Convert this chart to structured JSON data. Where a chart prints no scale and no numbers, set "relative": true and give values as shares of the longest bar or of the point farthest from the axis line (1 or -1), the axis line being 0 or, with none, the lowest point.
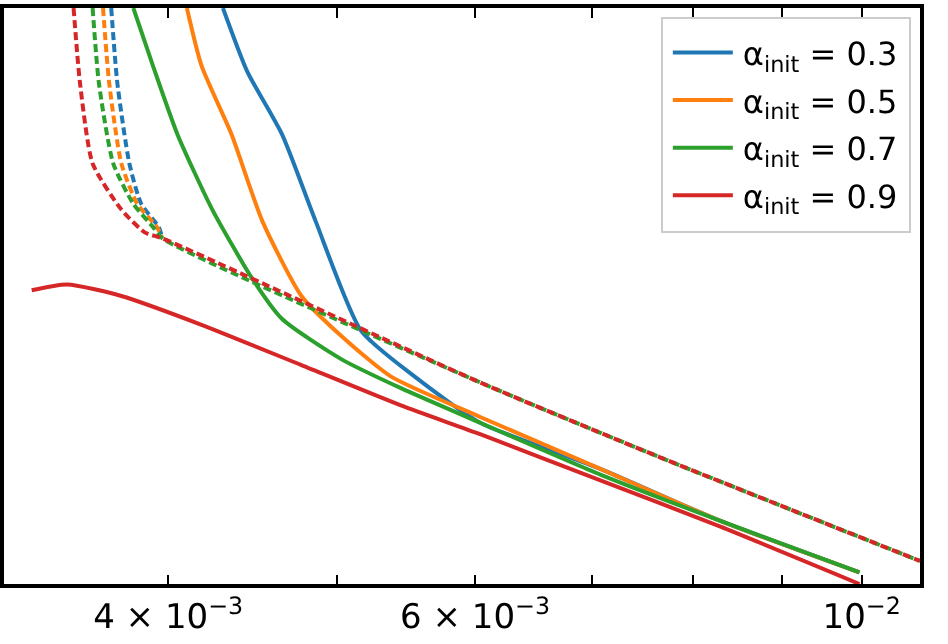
{
  "chart_data": {
    "type": "line",
    "relative": true,
    "tick_labels": "x",
    "legend": "top right",
    "log": "x",
    "xlim": [
      0.00322,
      0.0108
    ],
    "xticks": [
      {
        "value": 0.004,
        "label": "4 × 10$^{−3}$"
      },
      {
        "value": 0.005,
        "label": null
      },
      {
        "value": 0.006,
        "label": "6 × 10$^{−3}$"
      },
      {
        "value": 0.007,
        "label": null
      },
      {
        "value": 0.008,
        "label": null
      },
      {
        "value": 0.009,
        "label": null
      },
      {
        "value": 0.01,
        "label": "10$^{−2}$"
      }
    ],
    "series": [
      {
        "name": "α$_{init}$ = 0.3",
        "color": "#1f77b4",
        "x": [
          0.0043,
          0.00444,
          0.00465,
          0.00486,
          0.00516,
          0.00554,
          0.00604,
          0.00708,
          0.00829,
          0.00997
        ],
        "values": [
          1,
          0.89,
          0.78,
          0.63,
          0.44,
          0.36,
          0.28,
          0.2,
          0.11,
          0.02
        ]
      },
      {
        "name": "α$_{init}$ = 0.5",
        "color": "#ff7f0e",
        "x": [
          0.0041,
          0.00418,
          0.00435,
          0.00453,
          0.00477,
          0.00503,
          0.00537,
          0.00604,
          0.00708,
          0.00829,
          0.00997
        ],
        "values": [
          1,
          0.9,
          0.78,
          0.63,
          0.5,
          0.43,
          0.36,
          0.29,
          0.2,
          0.11,
          0.02
        ]
      },
      {
        "name": "α$_{init}$ = 0.7",
        "color": "#2ca02c",
        "x": [
          0.00382,
          0.00392,
          0.00405,
          0.00424,
          0.00447,
          0.00465,
          0.00503,
          0.00544,
          0.00604,
          0.00708,
          0.00829,
          0.00997
        ],
        "values": [
          1,
          0.9,
          0.78,
          0.65,
          0.53,
          0.46,
          0.39,
          0.34,
          0.28,
          0.19,
          0.11,
          0.02
        ]
      },
      {
        "name": "α$_{init}$ = 0.9",
        "color": "#d62728",
        "x": [
          0.00334,
          0.0035,
          0.00376,
          0.00418,
          0.00477,
          0.00544,
          0.00604,
          0.00708,
          0.00829,
          0.00997
        ],
        "values": [
          0.51,
          0.52,
          0.5,
          0.45,
          0.38,
          0.31,
          0.26,
          0.18,
          0.1,
          0
        ]
      },
      {
        "color": "#1f77b4",
        "line_style": "dashed",
        "x": [
          0.00371,
          0.00374,
          0.0038,
          0.00386,
          0.00395,
          0.00397
        ],
        "values": [
          1,
          0.87,
          0.73,
          0.66,
          0.62,
          0.6
        ]
      },
      {
        "color": "#ff7f0e",
        "line_style": "dashed",
        "x": [
          0.00367,
          0.0037,
          0.00376,
          0.00384,
          0.00394,
          0.00397
        ],
        "values": [
          1,
          0.87,
          0.73,
          0.66,
          0.62,
          0.6
        ]
      },
      {
        "color": "#2ca02c",
        "line_style": "dashed",
        "x": [
          0.00362,
          0.00365,
          0.00372,
          0.00382,
          0.00392,
          0.00397,
          0.00604,
          0.00766,
          0.0108
        ],
        "values": [
          1,
          0.87,
          0.73,
          0.66,
          0.62,
          0.6,
          0.35,
          0.22,
          0.04
        ]
      },
      {
        "color": "#d62728",
        "line_style": "dashed",
        "x": [
          0.00353,
          0.00356,
          0.00362,
          0.00376,
          0.00388,
          0.00397,
          0.00604,
          0.00766,
          0.0108
        ],
        "values": [
          1,
          0.87,
          0.73,
          0.65,
          0.61,
          0.6,
          0.35,
          0.22,
          0.04
        ]
      }
    ]
  }
}
